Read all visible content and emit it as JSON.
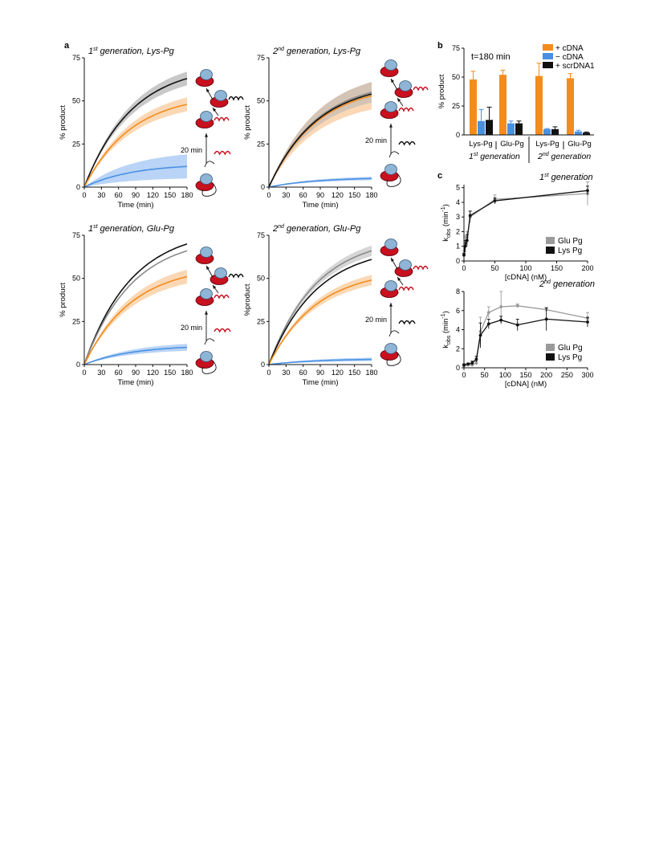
{
  "panel_labels": {
    "a": "a",
    "b": "b",
    "c": "c"
  },
  "colors": {
    "cdna": "#F28C1E",
    "no_cdna": "#4A90E2",
    "scr": "#111111",
    "glu_line": "#999999",
    "lys_line": "#111111",
    "enzyme": "#C8101E",
    "enzyme_head": "#8EB4D6"
  },
  "schematic_labels": {
    "time_left": "20 min",
    "time_right": "20 min"
  },
  "chart_data": [
    {
      "id": "a1",
      "type": "line",
      "title_main": "generation, Lys-Pg",
      "title_ord_num": "1",
      "title_ord_sup": "st",
      "xlabel": "Time (min)",
      "ylabel": "% product",
      "xlim": [
        0,
        180
      ],
      "ylim": [
        0,
        75
      ],
      "xticks": [
        0,
        30,
        60,
        90,
        120,
        150,
        180
      ],
      "yticks": [
        0,
        25,
        50,
        75
      ],
      "series": [
        {
          "color": "black",
          "y_at_180": 63,
          "band": 4
        },
        {
          "color": "orange",
          "y_at_180": 48,
          "band": 4
        },
        {
          "color": "blue",
          "y_at_180": 12,
          "band": 7
        }
      ]
    },
    {
      "id": "a2",
      "type": "line",
      "title_main": "generation, Lys-Pg",
      "title_ord_num": "2",
      "title_ord_sup": "nd",
      "xlabel": "Time (min)",
      "ylabel": "% product",
      "xlim": [
        0,
        180
      ],
      "ylim": [
        0,
        75
      ],
      "xticks": [
        0,
        30,
        60,
        90,
        120,
        150,
        180
      ],
      "yticks": [
        0,
        25,
        50,
        75
      ],
      "series": [
        {
          "color": "orange",
          "y_at_180": 53,
          "band": 8
        },
        {
          "color": "grey",
          "y_at_180": 55,
          "band": 6
        },
        {
          "color": "black",
          "y_at_180": 54,
          "band": 0
        },
        {
          "color": "blue",
          "y_at_180": 5,
          "band": 1
        }
      ]
    },
    {
      "id": "a3",
      "type": "line",
      "title_main": "generation, Glu-Pg",
      "title_ord_num": "1",
      "title_ord_sup": "st",
      "xlabel": "Time (min)",
      "ylabel": "% product",
      "xlim": [
        0,
        180
      ],
      "ylim": [
        0,
        75
      ],
      "xticks": [
        0,
        30,
        60,
        90,
        120,
        150,
        180
      ],
      "yticks": [
        0,
        25,
        50,
        75
      ],
      "series": [
        {
          "color": "black",
          "y_at_180": 70,
          "band": 0
        },
        {
          "color": "grey",
          "y_at_180": 66,
          "band": 0
        },
        {
          "color": "orange",
          "y_at_180": 51,
          "band": 4
        },
        {
          "color": "blue",
          "y_at_180": 10,
          "band": 2
        }
      ]
    },
    {
      "id": "a4",
      "type": "line",
      "title_main": "generation, Glu-Pg",
      "title_ord_num": "2",
      "title_ord_sup": "nd",
      "xlabel": "Time (min)",
      "ylabel": "%product",
      "xlim": [
        0,
        180
      ],
      "ylim": [
        0,
        75
      ],
      "xticks": [
        0,
        30,
        60,
        90,
        120,
        150,
        180
      ],
      "yticks": [
        0,
        25,
        50,
        75
      ],
      "series": [
        {
          "color": "grey",
          "y_at_180": 66,
          "band": 3
        },
        {
          "color": "black",
          "y_at_180": 61,
          "band": 0
        },
        {
          "color": "orange",
          "y_at_180": 49,
          "band": 3
        },
        {
          "color": "blue",
          "y_at_180": 3,
          "band": 1
        }
      ]
    },
    {
      "id": "b",
      "type": "bar",
      "annotation": "t=180 min",
      "ylabel": "% product",
      "ylim": [
        0,
        75
      ],
      "yticks": [
        0,
        25,
        50,
        75
      ],
      "categories": [
        "Lys-Pg",
        "Glu-Pg",
        "Lys-Pg",
        "Glu-Pg"
      ],
      "groups": [
        {
          "ord_num": "1",
          "ord_sup": "st",
          "label": "generation"
        },
        {
          "ord_num": "2",
          "ord_sup": "nd",
          "label": "generation"
        }
      ],
      "legend_position": "top-right",
      "series": [
        {
          "name": "+ cDNA",
          "values": [
            48,
            52,
            51,
            49
          ],
          "errors": [
            7,
            4,
            11,
            4
          ]
        },
        {
          "name": "− cDNA",
          "values": [
            12,
            10,
            5,
            3
          ],
          "errors": [
            10,
            2,
            0.5,
            1
          ]
        },
        {
          "name": "+ scrDNA1",
          "values": [
            13,
            10,
            5,
            2
          ],
          "errors": [
            11,
            2,
            2,
            0.5
          ]
        }
      ]
    },
    {
      "id": "c1",
      "type": "line",
      "title_ord_num": "1",
      "title_ord_sup": "st",
      "title_main": "generation",
      "xlabel": "[cDNA] (nM)",
      "ylabel_main": "k",
      "ylabel_sub": "obs",
      "ylabel_unit": "(min",
      "ylabel_exp": "-1",
      "ylabel_close": ")",
      "xlim": [
        0,
        200
      ],
      "ylim": [
        0,
        5.2
      ],
      "xticks": [
        0,
        50,
        100,
        150,
        200
      ],
      "yticks": [
        0,
        1,
        2,
        3,
        4,
        5
      ],
      "legend_position": "bottom-right",
      "series": [
        {
          "name": "Glu Pg",
          "x": [
            0,
            2,
            5,
            10,
            50,
            200
          ],
          "y": [
            0.5,
            1.2,
            1.6,
            3.0,
            4.2,
            4.6
          ],
          "err": [
            0.2,
            0.5,
            0.4,
            0.4,
            0.3,
            0.8
          ]
        },
        {
          "name": "Lys Pg",
          "x": [
            0,
            2,
            5,
            10,
            50,
            200
          ],
          "y": [
            0.4,
            1.0,
            1.4,
            3.1,
            4.1,
            4.8
          ],
          "err": [
            0.1,
            0.4,
            0.4,
            0.3,
            0.2,
            0.3
          ]
        }
      ]
    },
    {
      "id": "c2",
      "type": "line",
      "title_ord_num": "2",
      "title_ord_sup": "nd",
      "title_main": "generation",
      "xlabel": "[cDNA] (nM)",
      "ylabel_main": "k",
      "ylabel_sub": "obs",
      "ylabel_unit": "(min",
      "ylabel_exp": "-1",
      "ylabel_close": ")",
      "xlim": [
        0,
        300
      ],
      "ylim": [
        0,
        8
      ],
      "xticks": [
        0,
        50,
        100,
        150,
        200,
        250,
        300
      ],
      "yticks": [
        0,
        2,
        4,
        6,
        8
      ],
      "legend_position": "bottom-right",
      "series": [
        {
          "name": "Glu Pg",
          "x": [
            0,
            10,
            20,
            30,
            40,
            60,
            90,
            130,
            200,
            300
          ],
          "y": [
            0.2,
            0.3,
            0.3,
            0.5,
            3.8,
            5.8,
            6.4,
            6.5,
            6.1,
            5.2
          ],
          "err": [
            0.1,
            0.1,
            0.1,
            0.2,
            1.5,
            0.6,
            1.6,
            0.2,
            0.2,
            0.6
          ]
        },
        {
          "name": "Lys Pg",
          "x": [
            0,
            10,
            20,
            30,
            40,
            60,
            90,
            130,
            200,
            300
          ],
          "y": [
            0.3,
            0.4,
            0.5,
            0.9,
            3.4,
            4.6,
            5.0,
            4.5,
            5.1,
            4.8
          ],
          "err": [
            0.1,
            0.1,
            0.2,
            0.3,
            1.3,
            0.5,
            0.4,
            0.6,
            1.2,
            0.5
          ]
        }
      ]
    }
  ]
}
